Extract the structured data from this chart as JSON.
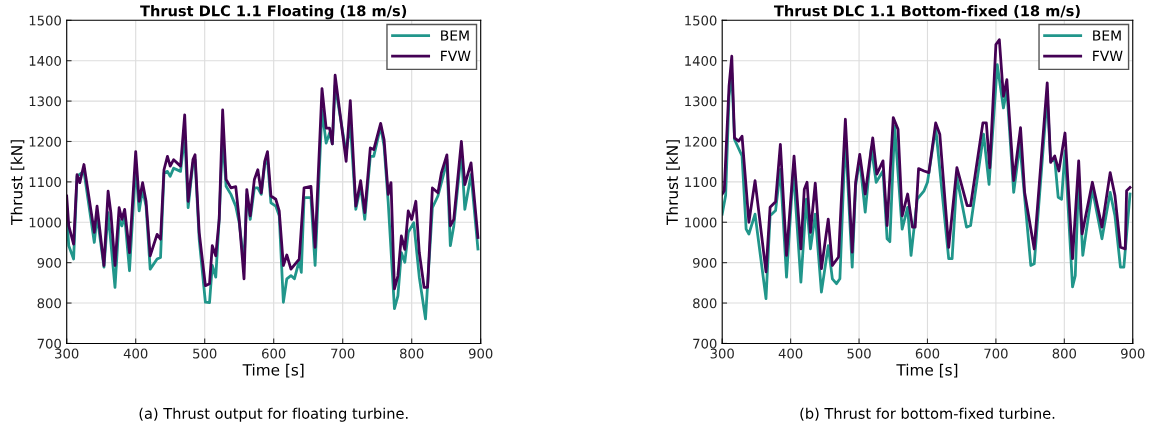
{
  "chart_data": [
    {
      "type": "line",
      "title": "Thrust DLC 1.1 Floating (18 m/s)",
      "xlabel": "Time [s]",
      "ylabel": "Thrust [kN]",
      "xlim": [
        300,
        900
      ],
      "xticks": [
        300,
        400,
        500,
        600,
        700,
        800,
        900
      ],
      "ylim": [
        700,
        1500
      ],
      "yticks": [
        700,
        800,
        900,
        1000,
        1100,
        1200,
        1300,
        1400,
        1500
      ],
      "grid": true,
      "legend": "top right",
      "annotations": [
        "(a) Thrust output for floating turbine."
      ],
      "series": [
        {
          "name": "BEM",
          "color": "#21968b",
          "x": [
            300,
            303,
            310,
            315,
            325,
            340,
            344,
            354,
            360,
            370,
            376,
            380,
            384,
            391,
            400,
            405,
            410,
            415,
            421,
            431,
            436,
            441,
            446,
            450,
            455,
            465,
            471,
            476,
            483,
            486,
            492,
            501,
            507,
            511,
            516,
            521,
            526,
            531,
            538,
            545,
            550,
            557,
            561,
            566,
            572,
            577,
            582,
            587,
            591,
            596,
            603,
            608,
            614,
            619,
            625,
            630,
            637,
            640,
            644,
            654,
            660,
            670,
            676,
            681,
            685,
            689,
            705,
            711,
            719,
            726,
            732,
            740,
            745,
            755,
            760,
            766,
            775,
            780,
            785,
            790,
            795,
            803,
            811,
            820,
            830,
            838,
            848,
            851,
            856,
            861,
            872,
            877,
            886,
            896
          ],
          "values": [
            1016,
            942,
            909,
            1114,
            1126,
            950,
            1016,
            889,
            1024,
            839,
            1007,
            991,
            1016,
            880,
            1139,
            1028,
            1081,
            1040,
            884,
            909,
            913,
            1122,
            1126,
            1114,
            1134,
            1126,
            1216,
            1036,
            1147,
            1155,
            958,
            802,
            801,
            893,
            864,
            1007,
            1212,
            1089,
            1069,
            1040,
            999,
            897,
            1069,
            1007,
            1085,
            1085,
            1069,
            1143,
            1155,
            1048,
            1040,
            1016,
            802,
            860,
            868,
            860,
            905,
            876,
            1061,
            1061,
            893,
            1278,
            1196,
            1221,
            1194,
            1339,
            1171,
            1245,
            1032,
            1089,
            1007,
            1163,
            1163,
            1237,
            1188,
            1048,
            786,
            818,
            925,
            901,
            975,
            999,
            864,
            761,
            1036,
            1065,
            1130,
            1155,
            942,
            991,
            1175,
            1032,
            1118,
            934
          ]
        },
        {
          "name": "FVW",
          "color": "#440154",
          "x": [
            300,
            303,
            310,
            315,
            319,
            325,
            340,
            344,
            354,
            360,
            364,
            370,
            376,
            380,
            384,
            391,
            400,
            405,
            410,
            415,
            421,
            431,
            436,
            441,
            446,
            450,
            455,
            465,
            471,
            476,
            483,
            486,
            492,
            501,
            507,
            511,
            516,
            521,
            526,
            531,
            538,
            545,
            550,
            557,
            561,
            566,
            572,
            577,
            582,
            587,
            591,
            596,
            603,
            608,
            614,
            619,
            625,
            637,
            644,
            654,
            660,
            670,
            676,
            681,
            685,
            689,
            705,
            711,
            719,
            726,
            732,
            740,
            745,
            755,
            760,
            766,
            770,
            775,
            780,
            785,
            790,
            795,
            800,
            806,
            811,
            818,
            823,
            830,
            838,
            843,
            851,
            856,
            861,
            872,
            877,
            886,
            896
          ],
          "values": [
            1065,
            991,
            946,
            1118,
            1098,
            1143,
            975,
            1040,
            893,
            1077,
            1024,
            893,
            1036,
            1007,
            1032,
            925,
            1175,
            1052,
            1098,
            1052,
            917,
            970,
            958,
            1130,
            1163,
            1139,
            1155,
            1139,
            1266,
            1052,
            1155,
            1167,
            975,
            843,
            848,
            942,
            917,
            1007,
            1278,
            1106,
            1085,
            1088,
            1007,
            860,
            1081,
            1016,
            1106,
            1130,
            1073,
            1151,
            1175,
            1065,
            1057,
            1028,
            893,
            919,
            884,
            909,
            1085,
            1089,
            938,
            1331,
            1233,
            1233,
            1194,
            1364,
            1151,
            1301,
            1040,
            1103,
            1024,
            1184,
            1180,
            1245,
            1204,
            1069,
            1098,
            835,
            867,
            966,
            933,
            1028,
            1007,
            1052,
            925,
            839,
            839,
            1085,
            1073,
            1122,
            1167,
            991,
            1007,
            1200,
            1093,
            1147,
            962
          ]
        }
      ]
    },
    {
      "type": "line",
      "title": "Thrust DLC 1.1 Bottom-fixed (18 m/s)",
      "xlabel": "Time [s]",
      "ylabel": "Thrust [kN]",
      "xlim": [
        300,
        900
      ],
      "xticks": [
        300,
        400,
        500,
        600,
        700,
        800,
        900
      ],
      "ylim": [
        700,
        1500
      ],
      "yticks": [
        700,
        800,
        900,
        1000,
        1100,
        1200,
        1300,
        1400,
        1500
      ],
      "grid": true,
      "legend": "top right",
      "annotations": [
        "(b) Thrust for bottom-fixed turbine."
      ],
      "series": [
        {
          "name": "BEM",
          "color": "#21968b",
          "x": [
            300,
            305,
            310,
            314,
            318,
            329,
            335,
            339,
            348,
            364,
            370,
            378,
            385,
            394,
            404,
            415,
            423,
            429,
            436,
            445,
            455,
            461,
            467,
            472,
            480,
            490,
            495,
            501,
            509,
            518,
            525,
            535,
            541,
            545,
            552,
            563,
            571,
            576,
            585,
            595,
            600,
            612,
            631,
            636,
            643,
            657,
            663,
            682,
            690,
            702,
            711,
            716,
            726,
            735,
            751,
            756,
            775,
            780,
            786,
            791,
            796,
            801,
            812,
            816,
            821,
            827,
            841,
            855,
            867,
            874,
            882,
            887,
            896
          ],
          "values": [
            1020,
            1066,
            1312,
            1370,
            1205,
            1164,
            983,
            971,
            1020,
            811,
            1016,
            1029,
            1131,
            864,
            1131,
            852,
            1057,
            934,
            1020,
            827,
            942,
            860,
            848,
            860,
            1214,
            889,
            1090,
            1156,
            1025,
            1185,
            1099,
            1127,
            959,
            952,
            1238,
            983,
            1037,
            918,
            1057,
            1078,
            1099,
            1234,
            910,
            910,
            1111,
            988,
            992,
            1218,
            1094,
            1390,
            1283,
            1329,
            1074,
            1193,
            893,
            897,
            1312,
            1152,
            1156,
            1062,
            1057,
            1177,
            840,
            868,
            1115,
            918,
            1082,
            959,
            1074,
            1016,
            889,
            889,
            1070
          ]
        },
        {
          "name": "FVW",
          "color": "#440154",
          "x": [
            300,
            303,
            310,
            314,
            318,
            324,
            329,
            339,
            348,
            364,
            370,
            378,
            385,
            394,
            405,
            415,
            420,
            424,
            429,
            436,
            445,
            455,
            461,
            470,
            480,
            490,
            495,
            501,
            509,
            520,
            526,
            535,
            541,
            550,
            557,
            563,
            571,
            578,
            582,
            587,
            595,
            602,
            612,
            618,
            631,
            643,
            658,
            663,
            681,
            686,
            691,
            700,
            705,
            711,
            716,
            726,
            736,
            742,
            756,
            775,
            780,
            786,
            792,
            801,
            812,
            821,
            826,
            841,
            855,
            867,
            874,
            882,
            889,
            891,
            896
          ],
          "values": [
            1070,
            1078,
            1337,
            1411,
            1209,
            1201,
            1213,
            1000,
            1103,
            877,
            1037,
            1051,
            1193,
            918,
            1164,
            934,
            1082,
            1099,
            975,
            1097,
            885,
            1008,
            893,
            914,
            1255,
            926,
            1099,
            1168,
            1070,
            1209,
            1119,
            1152,
            992,
            1259,
            1230,
            1016,
            1070,
            988,
            988,
            1133,
            1127,
            1123,
            1246,
            1218,
            938,
            1135,
            1041,
            1041,
            1246,
            1246,
            1135,
            1440,
            1452,
            1312,
            1353,
            1103,
            1234,
            1074,
            934,
            1345,
            1148,
            1164,
            1127,
            1221,
            910,
            1152,
            971,
            1099,
            988,
            1123,
            1066,
            938,
            934,
            1078,
            1086
          ]
        }
      ]
    }
  ]
}
